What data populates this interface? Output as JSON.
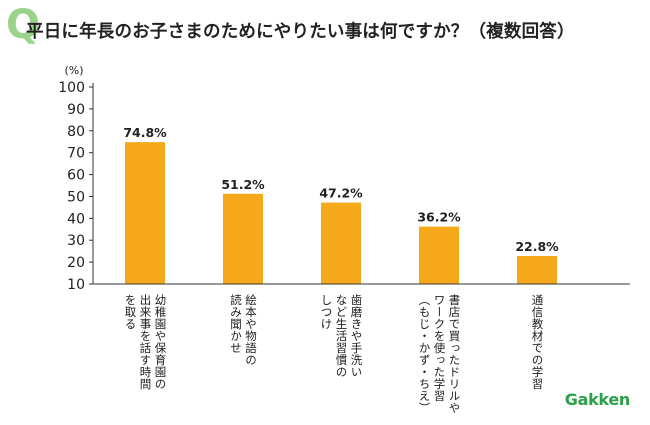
{
  "header": {
    "q_mark": "Q",
    "title": "平日に年長のお子さまのためにやりたい事は何ですか？（複数回答）"
  },
  "brand": {
    "logo": "Gakken"
  },
  "colors": {
    "bar": "#f5a91a",
    "q_mark": "#9bd38a",
    "logo": "#2aa04a",
    "axis": "#333333"
  },
  "chart_data": {
    "type": "bar",
    "title": "平日に年長のお子さまのためにやりたい事は何ですか？（複数回答）",
    "ylabel": "(%)",
    "xlabel": "",
    "ylim": [
      10,
      100
    ],
    "yticks": [
      100,
      90,
      80,
      70,
      60,
      50,
      40,
      30,
      20,
      10
    ],
    "grid": false,
    "categories": [
      "幼稚園や保育園の\n出来事を話す時間\nを取る",
      "絵本や物語の\n読み聞かせ",
      "歯磨きや手洗い\nなど生活習慣の\nしつけ",
      "書店で買ったドリルや\nワークを使った学習\n（もじ・かず・ちえ）",
      "通信教材での学習"
    ],
    "values": [
      74.8,
      51.2,
      47.2,
      36.2,
      22.8
    ],
    "value_labels": [
      "74.8%",
      "51.2%",
      "47.2%",
      "36.2%",
      "22.8%"
    ]
  }
}
